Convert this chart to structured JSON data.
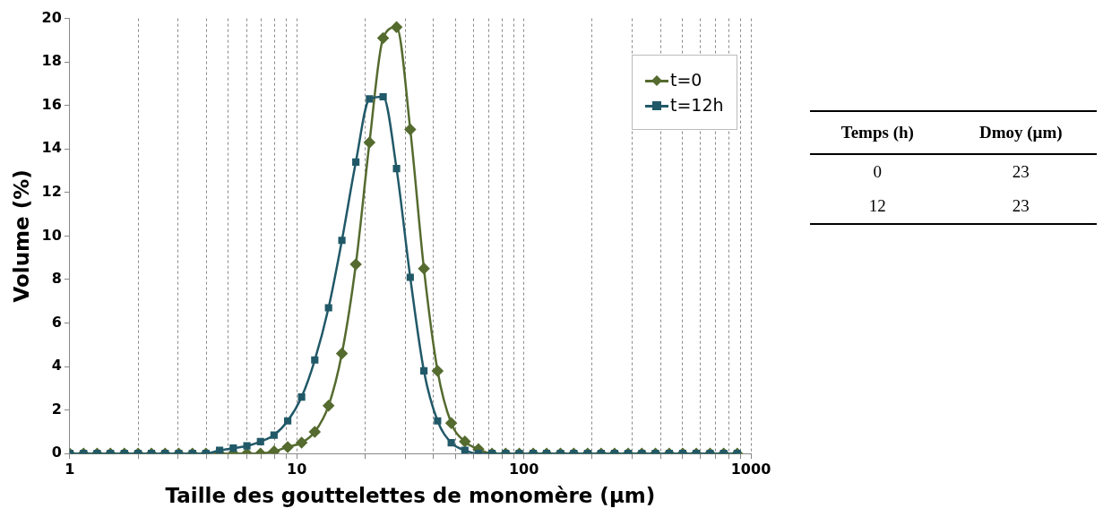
{
  "chart_data": [
    {
      "type": "line",
      "xlabel": "Taille des gouttelettes de monomère (µm)",
      "ylabel": "Volume (%)",
      "log": "x",
      "grid": "x",
      "legend": "top right",
      "x": [
        1,
        1.15,
        1.32,
        1.51,
        1.74,
        2,
        2.29,
        2.63,
        3.02,
        3.47,
        3.98,
        4.57,
        5.25,
        6.03,
        6.92,
        7.94,
        9.12,
        10.5,
        12,
        13.8,
        15.8,
        18.2,
        20.9,
        24,
        27.5,
        31.6,
        36.3,
        41.7,
        47.9,
        55,
        63.1,
        72.4,
        83.2,
        95.5,
        110,
        126,
        145,
        166,
        191,
        219,
        251,
        288,
        331,
        380,
        437,
        501,
        575,
        661,
        759,
        871
      ],
      "xlim": [
        1,
        1000
      ],
      "xticks": [
        1,
        {
          "value": 2,
          "label": null
        },
        {
          "value": 3,
          "label": null
        },
        {
          "value": 4,
          "label": null
        },
        {
          "value": 5,
          "label": null
        },
        {
          "value": 6,
          "label": null
        },
        {
          "value": 7,
          "label": null
        },
        {
          "value": 8,
          "label": null
        },
        {
          "value": 9,
          "label": null
        },
        10,
        {
          "value": 20,
          "label": null
        },
        {
          "value": 30,
          "label": null
        },
        {
          "value": 40,
          "label": null
        },
        {
          "value": 50,
          "label": null
        },
        {
          "value": 60,
          "label": null
        },
        {
          "value": 70,
          "label": null
        },
        {
          "value": 80,
          "label": null
        },
        {
          "value": 90,
          "label": null
        },
        100,
        {
          "value": 200,
          "label": null
        },
        {
          "value": 300,
          "label": null
        },
        {
          "value": 400,
          "label": null
        },
        {
          "value": 500,
          "label": null
        },
        {
          "value": 600,
          "label": null
        },
        {
          "value": 700,
          "label": null
        },
        {
          "value": 800,
          "label": null
        },
        {
          "value": 900,
          "label": null
        },
        1000
      ],
      "ylim": [
        0,
        20
      ],
      "yticks": [
        0,
        2,
        4,
        6,
        8,
        10,
        12,
        14,
        16,
        18,
        20
      ],
      "series": [
        {
          "name": "t=0",
          "color": "#556b2f",
          "marker": "diamond",
          "values": [
            0,
            0,
            0,
            0,
            0,
            0,
            0,
            0,
            0,
            0,
            0,
            0,
            0,
            0,
            0,
            0.1,
            0.3,
            0.5,
            1.0,
            2.2,
            4.6,
            8.7,
            14.3,
            19.1,
            19.6,
            14.9,
            8.5,
            3.8,
            1.4,
            0.55,
            0.2,
            0,
            0,
            0,
            0,
            0,
            0,
            0,
            0,
            0,
            0,
            0,
            0,
            0,
            0,
            0,
            0,
            0,
            0,
            0
          ]
        },
        {
          "name": "t=12h",
          "color": "#215968",
          "marker": "square",
          "values": [
            0,
            0,
            0,
            0,
            0,
            0,
            0,
            0,
            0,
            0,
            0,
            0.15,
            0.25,
            0.35,
            0.55,
            0.85,
            1.5,
            2.6,
            4.3,
            6.7,
            9.8,
            13.4,
            16.3,
            16.4,
            13.1,
            8.1,
            3.8,
            1.5,
            0.5,
            0.15,
            0,
            0,
            0,
            0,
            0,
            0,
            0,
            0,
            0,
            0,
            0,
            0,
            0,
            0,
            0,
            0,
            0,
            0,
            0,
            0
          ]
        }
      ]
    },
    {
      "type": "other",
      "annotations": [
        "Temps (h)",
        "Dmoy (µm)",
        "0",
        "23",
        "12",
        "23"
      ]
    }
  ]
}
